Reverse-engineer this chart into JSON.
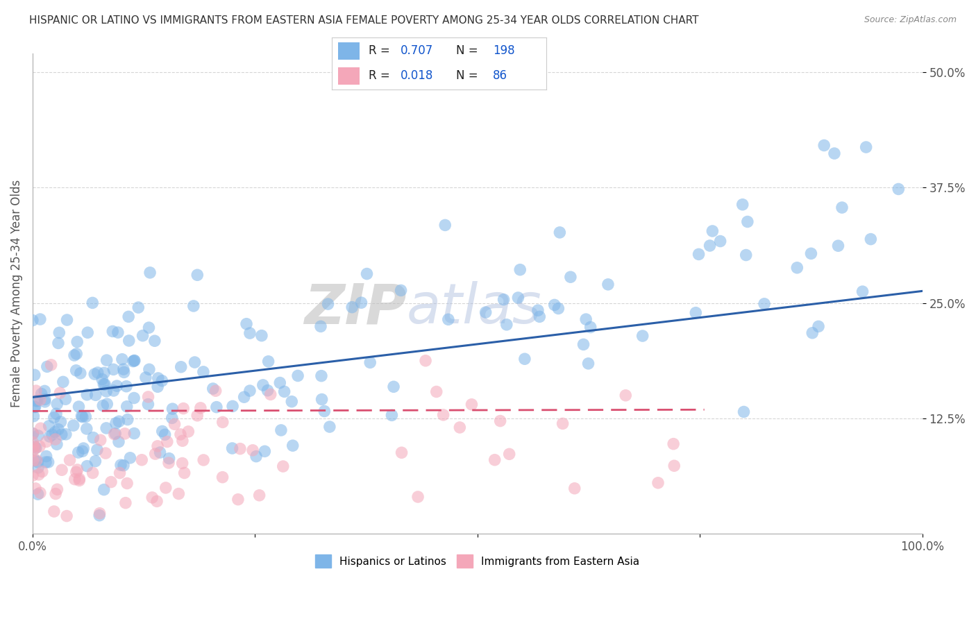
{
  "title": "HISPANIC OR LATINO VS IMMIGRANTS FROM EASTERN ASIA FEMALE POVERTY AMONG 25-34 YEAR OLDS CORRELATION CHART",
  "source": "Source: ZipAtlas.com",
  "ylabel": "Female Poverty Among 25-34 Year Olds",
  "xlim": [
    0,
    1.0
  ],
  "ylim": [
    0.0,
    0.52
  ],
  "yticks": [
    0.125,
    0.25,
    0.375,
    0.5
  ],
  "ytick_labels": [
    "12.5%",
    "25.0%",
    "37.5%",
    "50.0%"
  ],
  "xticks": [
    0.0,
    0.25,
    0.5,
    0.75,
    1.0
  ],
  "xtick_labels": [
    "0.0%",
    "",
    "",
    "",
    "100.0%"
  ],
  "blue_R": 0.707,
  "blue_N": 198,
  "pink_R": 0.018,
  "pink_N": 86,
  "blue_color": "#7EB5E8",
  "pink_color": "#F4A7B9",
  "blue_line_color": "#2B5FA8",
  "pink_line_color": "#D94F70",
  "background_color": "#FFFFFF",
  "grid_color": "#CCCCCC",
  "watermark_ZIP": "ZIP",
  "watermark_atlas": "atlas",
  "legend_label_blue": "Hispanics or Latinos",
  "legend_label_pink": "Immigrants from Eastern Asia",
  "title_color": "#333333",
  "title_fontsize": 11,
  "axis_label_color": "#555555",
  "tick_color": "#555555",
  "source_color": "#888888",
  "legend_R_color": "#1155CC",
  "legend_N_color": "#1155CC"
}
